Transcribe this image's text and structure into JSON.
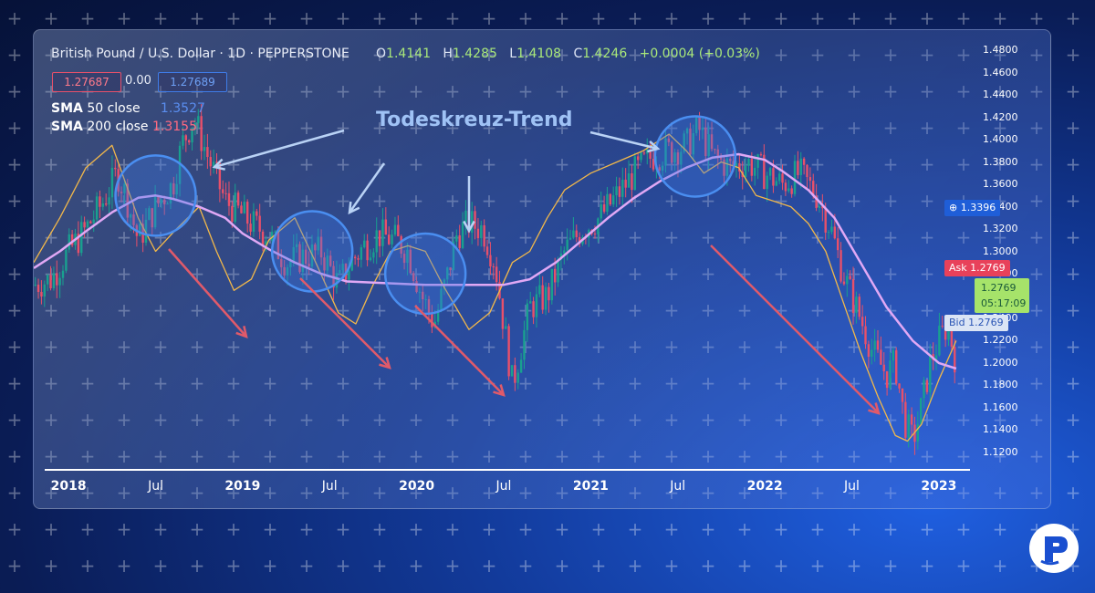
{
  "header": {
    "symbol": "British Pound / U.S. Dollar · 1D · PEPPERSTONE",
    "open_label": "O",
    "open": "1.4141",
    "high_label": "H",
    "high": "1.4285",
    "low_label": "L",
    "low": "1.4108",
    "close_label": "C",
    "close": "1.4246",
    "change": "+0.0004 (+0.03%)",
    "sell_price": "1.27687",
    "spread": "0.00",
    "buy_price": "1.27689"
  },
  "indicators": {
    "sma50_name": "SMA",
    "sma50_params": "50 close",
    "sma50_value": "1.3527",
    "sma200_name": "SMA",
    "sma200_params": "200 close",
    "sma200_value": "1.3155"
  },
  "annotation": {
    "title": "Todeskreuz-Trend"
  },
  "price_tags": {
    "current": "1.3396",
    "ask_label": "Ask",
    "ask_value": "1.2769",
    "last_value": "1.2769",
    "countdown": "05:17:09",
    "bid_label": "Bid",
    "bid_value": "1.2769"
  },
  "colors": {
    "up_candle": "#19a08f",
    "down_candle": "#e8506a",
    "sma_long": "#e0a8f5",
    "sma_short": "#f2b84a",
    "annotation_arrow_down": "#e05a6a",
    "annotation_arrow": "#b9d2f5",
    "circle": "#4a8ef0"
  },
  "chart_data": {
    "type": "line",
    "title": "British Pound / U.S. Dollar · 1D · PEPPERSTONE",
    "x_ticks": [
      "2018",
      "Jul",
      "2019",
      "Jul",
      "2020",
      "Jul",
      "2021",
      "Jul",
      "2022",
      "Jul",
      "2023"
    ],
    "y_ticks": [
      "1.4800",
      "1.4600",
      "1.4400",
      "1.4200",
      "1.4000",
      "1.3800",
      "1.3600",
      "1.3400",
      "1.3200",
      "1.3000",
      "1.2800",
      "1.2600",
      "1.2400",
      "1.2200",
      "1.2000",
      "1.1800",
      "1.1600",
      "1.1400",
      "1.1200"
    ],
    "ylim": [
      1.11,
      1.49
    ],
    "xlim": [
      2017.8,
      2023.2
    ],
    "series": [
      {
        "name": "SMA 200 close",
        "x": [
          2017.8,
          2017.95,
          2018.1,
          2018.25,
          2018.4,
          2018.5,
          2018.6,
          2018.75,
          2018.9,
          2019.0,
          2019.15,
          2019.3,
          2019.45,
          2019.6,
          2019.75,
          2019.9,
          2020.05,
          2020.2,
          2020.35,
          2020.5,
          2020.65,
          2020.8,
          2020.95,
          2021.1,
          2021.25,
          2021.4,
          2021.55,
          2021.7,
          2021.85,
          2022.0,
          2022.1,
          2022.25,
          2022.4,
          2022.55,
          2022.7,
          2022.85,
          2023.0,
          2023.1
        ],
        "values": [
          1.285,
          1.3,
          1.318,
          1.335,
          1.348,
          1.35,
          1.347,
          1.34,
          1.33,
          1.316,
          1.302,
          1.29,
          1.28,
          1.273,
          1.272,
          1.271,
          1.27,
          1.27,
          1.27,
          1.27,
          1.275,
          1.29,
          1.31,
          1.33,
          1.348,
          1.363,
          1.375,
          1.384,
          1.387,
          1.382,
          1.372,
          1.355,
          1.33,
          1.29,
          1.25,
          1.22,
          1.2,
          1.195
        ]
      },
      {
        "name": "SMA 50 close",
        "x": [
          2017.8,
          2017.95,
          2018.1,
          2018.25,
          2018.4,
          2018.5,
          2018.62,
          2018.75,
          2018.85,
          2018.95,
          2019.05,
          2019.15,
          2019.3,
          2019.42,
          2019.55,
          2019.65,
          2019.75,
          2019.85,
          2019.95,
          2020.05,
          2020.15,
          2020.3,
          2020.42,
          2020.55,
          2020.65,
          2020.75,
          2020.85,
          2021.0,
          2021.15,
          2021.3,
          2021.45,
          2021.55,
          2021.65,
          2021.75,
          2021.85,
          2021.95,
          2022.05,
          2022.15,
          2022.25,
          2022.35,
          2022.45,
          2022.55,
          2022.65,
          2022.75,
          2022.82,
          2022.9,
          2023.0,
          2023.1
        ],
        "values": [
          1.29,
          1.33,
          1.375,
          1.395,
          1.33,
          1.3,
          1.32,
          1.34,
          1.3,
          1.265,
          1.275,
          1.31,
          1.33,
          1.29,
          1.245,
          1.235,
          1.27,
          1.3,
          1.305,
          1.3,
          1.27,
          1.23,
          1.245,
          1.29,
          1.3,
          1.33,
          1.355,
          1.37,
          1.38,
          1.39,
          1.405,
          1.39,
          1.37,
          1.38,
          1.375,
          1.35,
          1.345,
          1.34,
          1.325,
          1.3,
          1.255,
          1.21,
          1.17,
          1.135,
          1.13,
          1.145,
          1.185,
          1.22
        ]
      },
      {
        "name": "GBP/USD",
        "x": [
          2017.8,
          2017.9,
          2018.0,
          2018.1,
          2018.2,
          2018.28,
          2018.33,
          2018.4,
          2018.5,
          2018.6,
          2018.65,
          2018.72,
          2018.8,
          2018.9,
          2018.98,
          2019.05,
          2019.15,
          2019.25,
          2019.35,
          2019.45,
          2019.55,
          2019.62,
          2019.7,
          2019.78,
          2019.88,
          2019.95,
          2020.03,
          2020.1,
          2020.18,
          2020.23,
          2020.3,
          2020.38,
          2020.45,
          2020.55,
          2020.65,
          2020.75,
          2020.85,
          2020.95,
          2021.05,
          2021.15,
          2021.25,
          2021.35,
          2021.45,
          2021.55,
          2021.62,
          2021.7,
          2021.8,
          2021.9,
          2022.0,
          2022.1,
          2022.2,
          2022.3,
          2022.38,
          2022.45,
          2022.55,
          2022.62,
          2022.7,
          2022.75,
          2022.8,
          2022.85,
          2022.9,
          2022.95,
          2023.0,
          2023.05,
          2023.1
        ],
        "values": [
          1.27,
          1.275,
          1.3,
          1.32,
          1.345,
          1.37,
          1.35,
          1.31,
          1.34,
          1.36,
          1.395,
          1.42,
          1.385,
          1.345,
          1.335,
          1.325,
          1.315,
          1.29,
          1.295,
          1.3,
          1.27,
          1.29,
          1.305,
          1.315,
          1.31,
          1.3,
          1.26,
          1.235,
          1.28,
          1.315,
          1.325,
          1.32,
          1.29,
          1.18,
          1.25,
          1.26,
          1.3,
          1.32,
          1.33,
          1.35,
          1.37,
          1.385,
          1.39,
          1.395,
          1.41,
          1.385,
          1.375,
          1.38,
          1.37,
          1.36,
          1.37,
          1.35,
          1.32,
          1.28,
          1.24,
          1.21,
          1.19,
          1.2,
          1.15,
          1.13,
          1.16,
          1.2,
          1.22,
          1.235,
          1.2
        ]
      }
    ],
    "grid": false,
    "legend": "top-left"
  }
}
